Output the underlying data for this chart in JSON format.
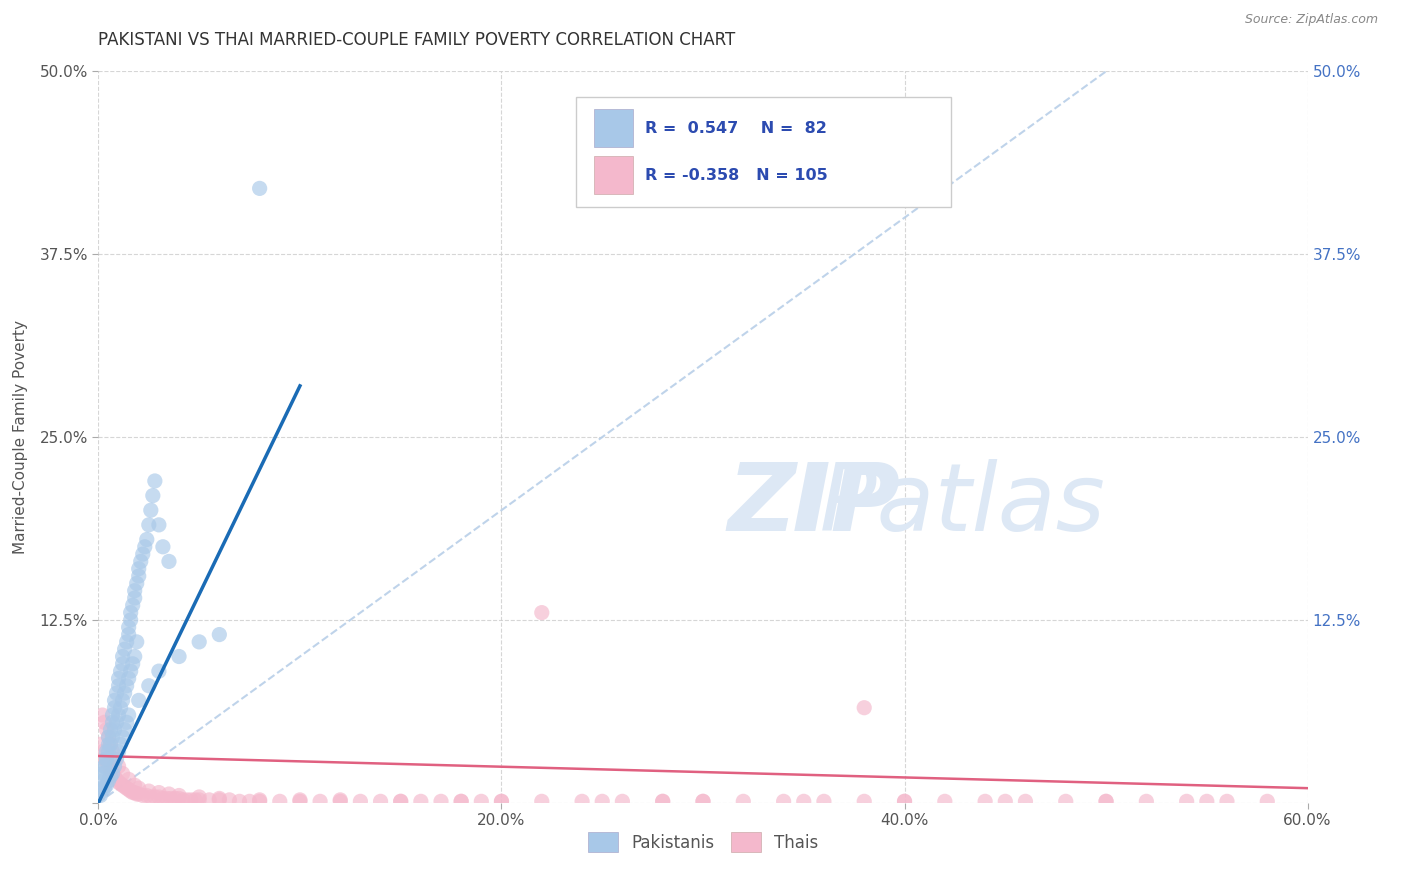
{
  "title": "PAKISTANI VS THAI MARRIED-COUPLE FAMILY POVERTY CORRELATION CHART",
  "source": "Source: ZipAtlas.com",
  "ylabel": "Married-Couple Family Poverty",
  "xlim": [
    0.0,
    0.6
  ],
  "ylim": [
    0.0,
    0.5
  ],
  "xtick_values": [
    0.0,
    0.2,
    0.4,
    0.6
  ],
  "xtick_labels": [
    "0.0%",
    "20.0%",
    "40.0%",
    "60.0%"
  ],
  "ytick_values": [
    0.0,
    0.125,
    0.25,
    0.375,
    0.5
  ],
  "ytick_labels_left": [
    "",
    "12.5%",
    "25.0%",
    "37.5%",
    "50.0%"
  ],
  "ytick_labels_right": [
    "",
    "12.5%",
    "25.0%",
    "37.5%",
    "50.0%"
  ],
  "pakistani_color": "#a8c8e8",
  "thai_color": "#f4b8cc",
  "trend_pakistani_color": "#1a6bb5",
  "trend_thai_color": "#e06080",
  "diagonal_color": "#b8cfe8",
  "background_color": "#ffffff",
  "grid_color": "#cccccc",
  "right_tick_color": "#4472c4",
  "title_color": "#333333",
  "source_color": "#888888",
  "ylabel_color": "#555555",
  "legend_text_color": "#2c4bb0",
  "watermark_color": "#dde8f5",
  "pak_scatter_x": [
    0.002,
    0.003,
    0.004,
    0.004,
    0.005,
    0.005,
    0.006,
    0.007,
    0.007,
    0.008,
    0.008,
    0.009,
    0.01,
    0.01,
    0.011,
    0.012,
    0.012,
    0.013,
    0.014,
    0.015,
    0.015,
    0.016,
    0.016,
    0.017,
    0.018,
    0.018,
    0.019,
    0.02,
    0.02,
    0.021,
    0.022,
    0.023,
    0.024,
    0.025,
    0.026,
    0.027,
    0.028,
    0.03,
    0.032,
    0.035,
    0.001,
    0.002,
    0.003,
    0.003,
    0.004,
    0.005,
    0.006,
    0.007,
    0.008,
    0.009,
    0.01,
    0.011,
    0.012,
    0.013,
    0.014,
    0.015,
    0.016,
    0.017,
    0.018,
    0.019,
    0.001,
    0.002,
    0.003,
    0.004,
    0.005,
    0.006,
    0.007,
    0.008,
    0.009,
    0.01,
    0.011,
    0.012,
    0.013,
    0.014,
    0.015,
    0.02,
    0.025,
    0.03,
    0.04,
    0.05,
    0.06,
    0.08
  ],
  "pak_scatter_y": [
    0.02,
    0.025,
    0.03,
    0.035,
    0.04,
    0.045,
    0.05,
    0.055,
    0.06,
    0.065,
    0.07,
    0.075,
    0.08,
    0.085,
    0.09,
    0.095,
    0.1,
    0.105,
    0.11,
    0.115,
    0.12,
    0.125,
    0.13,
    0.135,
    0.14,
    0.145,
    0.15,
    0.155,
    0.16,
    0.165,
    0.17,
    0.175,
    0.18,
    0.19,
    0.2,
    0.21,
    0.22,
    0.19,
    0.175,
    0.165,
    0.01,
    0.015,
    0.02,
    0.025,
    0.03,
    0.035,
    0.04,
    0.045,
    0.05,
    0.055,
    0.06,
    0.065,
    0.07,
    0.075,
    0.08,
    0.085,
    0.09,
    0.095,
    0.1,
    0.11,
    0.005,
    0.008,
    0.01,
    0.012,
    0.015,
    0.018,
    0.02,
    0.025,
    0.03,
    0.035,
    0.04,
    0.045,
    0.05,
    0.055,
    0.06,
    0.07,
    0.08,
    0.09,
    0.1,
    0.11,
    0.115,
    0.42
  ],
  "thai_scatter_x": [
    0.001,
    0.002,
    0.003,
    0.004,
    0.005,
    0.006,
    0.007,
    0.008,
    0.009,
    0.01,
    0.011,
    0.012,
    0.013,
    0.014,
    0.015,
    0.016,
    0.017,
    0.018,
    0.019,
    0.02,
    0.022,
    0.024,
    0.026,
    0.028,
    0.03,
    0.032,
    0.034,
    0.036,
    0.038,
    0.04,
    0.042,
    0.044,
    0.046,
    0.048,
    0.05,
    0.055,
    0.06,
    0.065,
    0.07,
    0.075,
    0.08,
    0.09,
    0.1,
    0.11,
    0.12,
    0.13,
    0.14,
    0.15,
    0.16,
    0.17,
    0.18,
    0.19,
    0.2,
    0.22,
    0.24,
    0.26,
    0.28,
    0.3,
    0.32,
    0.34,
    0.36,
    0.38,
    0.4,
    0.42,
    0.44,
    0.46,
    0.48,
    0.5,
    0.52,
    0.54,
    0.56,
    0.58,
    0.002,
    0.003,
    0.004,
    0.005,
    0.006,
    0.007,
    0.008,
    0.01,
    0.012,
    0.015,
    0.018,
    0.02,
    0.025,
    0.03,
    0.035,
    0.04,
    0.05,
    0.06,
    0.08,
    0.1,
    0.12,
    0.15,
    0.18,
    0.2,
    0.25,
    0.28,
    0.3,
    0.35,
    0.4,
    0.45,
    0.5,
    0.55,
    0.22,
    0.38
  ],
  "thai_scatter_y": [
    0.04,
    0.035,
    0.03,
    0.028,
    0.025,
    0.022,
    0.02,
    0.018,
    0.016,
    0.014,
    0.013,
    0.012,
    0.011,
    0.01,
    0.009,
    0.008,
    0.007,
    0.007,
    0.006,
    0.006,
    0.005,
    0.005,
    0.004,
    0.004,
    0.004,
    0.003,
    0.003,
    0.003,
    0.003,
    0.003,
    0.002,
    0.002,
    0.002,
    0.002,
    0.002,
    0.002,
    0.002,
    0.002,
    0.001,
    0.001,
    0.001,
    0.001,
    0.001,
    0.001,
    0.001,
    0.001,
    0.001,
    0.001,
    0.001,
    0.001,
    0.001,
    0.001,
    0.001,
    0.001,
    0.001,
    0.001,
    0.001,
    0.001,
    0.001,
    0.001,
    0.001,
    0.001,
    0.001,
    0.001,
    0.001,
    0.001,
    0.001,
    0.001,
    0.001,
    0.001,
    0.001,
    0.001,
    0.06,
    0.055,
    0.05,
    0.045,
    0.04,
    0.035,
    0.03,
    0.025,
    0.02,
    0.016,
    0.012,
    0.01,
    0.008,
    0.007,
    0.006,
    0.005,
    0.004,
    0.003,
    0.002,
    0.002,
    0.002,
    0.001,
    0.001,
    0.001,
    0.001,
    0.001,
    0.001,
    0.001,
    0.001,
    0.001,
    0.001,
    0.001,
    0.13,
    0.065
  ]
}
